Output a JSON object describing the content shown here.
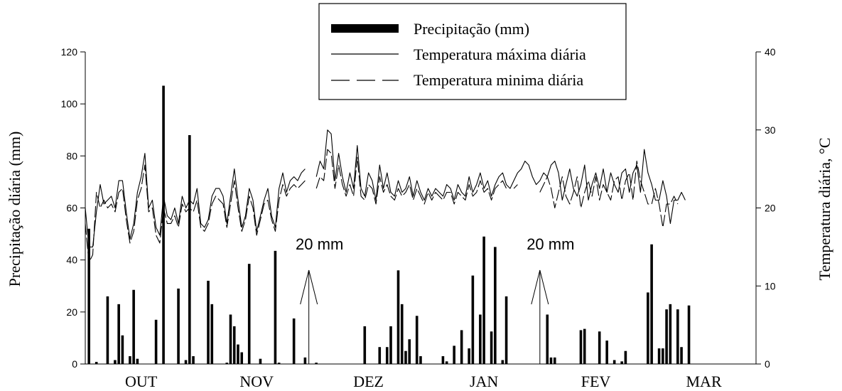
{
  "chart_data": {
    "type": "bar+line",
    "legend": {
      "placement": "top-center",
      "entries": [
        {
          "key": "precip",
          "label": "Precipitação (mm)"
        },
        {
          "key": "tmax",
          "label": "Temperatura máxima diária"
        },
        {
          "key": "tmin",
          "label": "Temperatura minima diária"
        }
      ]
    },
    "y_left": {
      "label": "Precipitação diária (mm)",
      "range": [
        0,
        120
      ],
      "ticks": [
        "0",
        "20",
        "40",
        "60",
        "80",
        "100",
        "120"
      ]
    },
    "y_right": {
      "label": "Temperatura diária, °C",
      "range": [
        0,
        40
      ],
      "ticks": [
        "0",
        "10",
        "20",
        "30",
        "40"
      ]
    },
    "x": {
      "range": [
        0,
        180
      ],
      "months": [
        {
          "label": "OUT",
          "center": 15
        },
        {
          "label": "NOV",
          "center": 46
        },
        {
          "label": "DEZ",
          "center": 76
        },
        {
          "label": "JAN",
          "center": 107
        },
        {
          "label": "FEV",
          "center": 137
        },
        {
          "label": "MAR",
          "center": 166
        }
      ]
    },
    "annotations": [
      {
        "text": "20 mm",
        "day": 60,
        "value": 20
      },
      {
        "text": "20 mm",
        "day": 122,
        "value": 20
      }
    ],
    "precipitation": [
      [
        0,
        52
      ],
      [
        2,
        0.8
      ],
      [
        5,
        26
      ],
      [
        7,
        1.5
      ],
      [
        8,
        23
      ],
      [
        9,
        11
      ],
      [
        11,
        3
      ],
      [
        12,
        28.5
      ],
      [
        13,
        2
      ],
      [
        18,
        17
      ],
      [
        20,
        107
      ],
      [
        24,
        29
      ],
      [
        26,
        1.5
      ],
      [
        27,
        88
      ],
      [
        28,
        3
      ],
      [
        32,
        32
      ],
      [
        33,
        23
      ],
      [
        37,
        0.5
      ],
      [
        38,
        19
      ],
      [
        39,
        14.5
      ],
      [
        40,
        7.5
      ],
      [
        41,
        4.5
      ],
      [
        43,
        38.5
      ],
      [
        46,
        2
      ],
      [
        50,
        43.5
      ],
      [
        51,
        0.5
      ],
      [
        55,
        17.5
      ],
      [
        58,
        2.5
      ],
      [
        61,
        0.5
      ],
      [
        74,
        14.5
      ],
      [
        78,
        6.5
      ],
      [
        80,
        6.5
      ],
      [
        81,
        14.5
      ],
      [
        83,
        36
      ],
      [
        84,
        23
      ],
      [
        85,
        5
      ],
      [
        86,
        9.5
      ],
      [
        88,
        18.5
      ],
      [
        89,
        3
      ],
      [
        95,
        3
      ],
      [
        96,
        1
      ],
      [
        98,
        7
      ],
      [
        100,
        13
      ],
      [
        102,
        6
      ],
      [
        103,
        34
      ],
      [
        105,
        19
      ],
      [
        106,
        49
      ],
      [
        108,
        12.5
      ],
      [
        109,
        45
      ],
      [
        111,
        1.5
      ],
      [
        112,
        26
      ],
      [
        123,
        19
      ],
      [
        124,
        2.5
      ],
      [
        125,
        2.5
      ],
      [
        132,
        13
      ],
      [
        133,
        13.5
      ],
      [
        137,
        12.5
      ],
      [
        139,
        9
      ],
      [
        141,
        1.5
      ],
      [
        143,
        1
      ],
      [
        144,
        5
      ],
      [
        150,
        27.5
      ],
      [
        151,
        46
      ],
      [
        153,
        6
      ],
      [
        154,
        6
      ],
      [
        155,
        21
      ],
      [
        156,
        23
      ],
      [
        158,
        21
      ],
      [
        159,
        6.5
      ],
      [
        161,
        22.5
      ]
    ],
    "tmax": [
      [
        0,
        20
      ],
      [
        1,
        15
      ],
      [
        2,
        15
      ],
      [
        3,
        19.5
      ],
      [
        4,
        23
      ],
      [
        5,
        20.5
      ],
      [
        6,
        21
      ],
      [
        7,
        21.5
      ],
      [
        8,
        20
      ],
      [
        9,
        23.5
      ],
      [
        10,
        23.5
      ],
      [
        11,
        19.5
      ],
      [
        12,
        16
      ],
      [
        13,
        18
      ],
      [
        14,
        22
      ],
      [
        15,
        24
      ],
      [
        16,
        27
      ],
      [
        17,
        20
      ],
      [
        18,
        21
      ],
      [
        19,
        17.5
      ],
      [
        20,
        16.5
      ],
      [
        21,
        21.5
      ],
      [
        22,
        19
      ],
      [
        23,
        18.5
      ],
      [
        24,
        20
      ],
      [
        25,
        18
      ],
      [
        26,
        21.5
      ],
      [
        27,
        20
      ],
      [
        28,
        21
      ],
      [
        29,
        20.5
      ],
      [
        30,
        22.5
      ],
      [
        31,
        18
      ],
      [
        32,
        17.5
      ],
      [
        33,
        18.5
      ],
      [
        34,
        21.5
      ],
      [
        35,
        22.5
      ],
      [
        36,
        22.5
      ],
      [
        37,
        21.5
      ],
      [
        38,
        18
      ],
      [
        39,
        21.5
      ],
      [
        40,
        25
      ],
      [
        41,
        21
      ],
      [
        42,
        17.5
      ],
      [
        43,
        19
      ],
      [
        44,
        22.5
      ],
      [
        45,
        21
      ],
      [
        46,
        17
      ],
      [
        47,
        19
      ],
      [
        48,
        21
      ],
      [
        49,
        22.5
      ],
      [
        50,
        19
      ],
      [
        51,
        17.5
      ],
      [
        52,
        22.5
      ],
      [
        53,
        24.5
      ],
      [
        54,
        22
      ],
      [
        55,
        23.5
      ],
      [
        56,
        24
      ],
      [
        57,
        23.5
      ],
      [
        58,
        24.5
      ],
      [
        59,
        25
      ],
      [
        62,
        24
      ],
      [
        63,
        26
      ],
      [
        64,
        25
      ],
      [
        65,
        30
      ],
      [
        66,
        29.5
      ],
      [
        67,
        23.5
      ],
      [
        68,
        27
      ],
      [
        69,
        24
      ],
      [
        70,
        22
      ],
      [
        71,
        24.5
      ],
      [
        72,
        22.5
      ],
      [
        73,
        28
      ],
      [
        74,
        22.5
      ],
      [
        75,
        21.5
      ],
      [
        76,
        24.5
      ],
      [
        77,
        23.5
      ],
      [
        78,
        21
      ],
      [
        79,
        25.5
      ],
      [
        80,
        22.5
      ],
      [
        81,
        24.5
      ],
      [
        82,
        22
      ],
      [
        83,
        21.5
      ],
      [
        84,
        23.5
      ],
      [
        85,
        22
      ],
      [
        86,
        22.5
      ],
      [
        87,
        24
      ],
      [
        88,
        21.5
      ],
      [
        89,
        23.5
      ],
      [
        90,
        22
      ],
      [
        91,
        21
      ],
      [
        92,
        22.5
      ],
      [
        93,
        21.5
      ],
      [
        94,
        22.5
      ],
      [
        95,
        22
      ],
      [
        96,
        21.5
      ],
      [
        97,
        23
      ],
      [
        98,
        22.5
      ],
      [
        99,
        21
      ],
      [
        100,
        23
      ],
      [
        101,
        22
      ],
      [
        102,
        21.5
      ],
      [
        103,
        24
      ],
      [
        104,
        22
      ],
      [
        105,
        23
      ],
      [
        106,
        24.5
      ],
      [
        107,
        22.5
      ],
      [
        108,
        23.5
      ],
      [
        109,
        21.5
      ],
      [
        110,
        23
      ],
      [
        111,
        24
      ],
      [
        112,
        24.5
      ],
      [
        113,
        23
      ],
      [
        114,
        22.5
      ],
      [
        115,
        23.5
      ],
      [
        116,
        24.5
      ],
      [
        117,
        25
      ],
      [
        118,
        26
      ],
      [
        119,
        25.5
      ],
      [
        120,
        24
      ],
      [
        121,
        23
      ],
      [
        122,
        23.5
      ],
      [
        123,
        24.5
      ],
      [
        124,
        24
      ],
      [
        125,
        25.5
      ],
      [
        126,
        26
      ],
      [
        127,
        24.5
      ],
      [
        128,
        21
      ],
      [
        129,
        23
      ],
      [
        130,
        25
      ],
      [
        131,
        22.5
      ],
      [
        132,
        21.5
      ],
      [
        133,
        23
      ],
      [
        134,
        25.5
      ],
      [
        135,
        21
      ],
      [
        136,
        23
      ],
      [
        137,
        24.5
      ],
      [
        138,
        22.5
      ],
      [
        139,
        25
      ],
      [
        140,
        22
      ],
      [
        141,
        24.5
      ],
      [
        142,
        23
      ],
      [
        143,
        22
      ],
      [
        144,
        24.5
      ],
      [
        145,
        25
      ],
      [
        146,
        22
      ],
      [
        147,
        24.5
      ],
      [
        148,
        25.5
      ],
      [
        149,
        22
      ],
      [
        150,
        27.5
      ],
      [
        151,
        24.5
      ],
      [
        152,
        23
      ],
      [
        153,
        21
      ],
      [
        154,
        21
      ],
      [
        155,
        23.5
      ],
      [
        156,
        21.5
      ],
      [
        157,
        18
      ],
      [
        158,
        21
      ],
      [
        159,
        21
      ],
      [
        160,
        22
      ],
      [
        161,
        21
      ]
    ],
    "tmin": [
      [
        0,
        18
      ],
      [
        1,
        13
      ],
      [
        2,
        14
      ],
      [
        3,
        22
      ],
      [
        4,
        20
      ],
      [
        5,
        21
      ],
      [
        6,
        20
      ],
      [
        7,
        20.5
      ],
      [
        8,
        19.5
      ],
      [
        9,
        22
      ],
      [
        10,
        22.5
      ],
      [
        11,
        18.5
      ],
      [
        12,
        15.5
      ],
      [
        13,
        17
      ],
      [
        14,
        21
      ],
      [
        15,
        22.5
      ],
      [
        16,
        25.5
      ],
      [
        17,
        19.5
      ],
      [
        18,
        20
      ],
      [
        19,
        16.5
      ],
      [
        20,
        15.5
      ],
      [
        21,
        20
      ],
      [
        22,
        18
      ],
      [
        23,
        18
      ],
      [
        24,
        19
      ],
      [
        25,
        17.5
      ],
      [
        26,
        20.5
      ],
      [
        27,
        19.5
      ],
      [
        28,
        20
      ],
      [
        29,
        19.5
      ],
      [
        30,
        21
      ],
      [
        31,
        17.5
      ],
      [
        32,
        17
      ],
      [
        33,
        18
      ],
      [
        34,
        20.5
      ],
      [
        35,
        21.5
      ],
      [
        36,
        21
      ],
      [
        37,
        20.5
      ],
      [
        38,
        17.5
      ],
      [
        39,
        20.5
      ],
      [
        40,
        23.5
      ],
      [
        41,
        20
      ],
      [
        42,
        17
      ],
      [
        43,
        18.5
      ],
      [
        44,
        21.5
      ],
      [
        45,
        20
      ],
      [
        46,
        16.5
      ],
      [
        47,
        18.5
      ],
      [
        48,
        20.5
      ],
      [
        49,
        21
      ],
      [
        50,
        18.5
      ],
      [
        51,
        17
      ],
      [
        52,
        21
      ],
      [
        53,
        23
      ],
      [
        54,
        21.5
      ],
      [
        55,
        22.5
      ],
      [
        56,
        23
      ],
      [
        57,
        22.5
      ],
      [
        58,
        23
      ],
      [
        59,
        23.5
      ],
      [
        62,
        22.5
      ],
      [
        63,
        24
      ],
      [
        64,
        23.5
      ],
      [
        65,
        27.5
      ],
      [
        66,
        27
      ],
      [
        67,
        22.5
      ],
      [
        68,
        25.5
      ],
      [
        69,
        23
      ],
      [
        70,
        21.5
      ],
      [
        71,
        23
      ],
      [
        72,
        21.5
      ],
      [
        73,
        26.5
      ],
      [
        74,
        21.5
      ],
      [
        75,
        21
      ],
      [
        76,
        23
      ],
      [
        77,
        22.5
      ],
      [
        78,
        20.5
      ],
      [
        79,
        24
      ],
      [
        80,
        22
      ],
      [
        81,
        23
      ],
      [
        82,
        21.5
      ],
      [
        83,
        21
      ],
      [
        84,
        22.5
      ],
      [
        85,
        21.5
      ],
      [
        86,
        22
      ],
      [
        87,
        23
      ],
      [
        88,
        21
      ],
      [
        89,
        22.5
      ],
      [
        90,
        21.5
      ],
      [
        91,
        20.5
      ],
      [
        92,
        22
      ],
      [
        93,
        21
      ],
      [
        94,
        22
      ],
      [
        95,
        21.5
      ],
      [
        96,
        21
      ],
      [
        97,
        22
      ],
      [
        98,
        22
      ],
      [
        99,
        20.5
      ],
      [
        100,
        22
      ],
      [
        101,
        21.5
      ],
      [
        102,
        21
      ],
      [
        103,
        23
      ],
      [
        104,
        21.5
      ],
      [
        105,
        22
      ],
      [
        106,
        23.5
      ],
      [
        107,
        22
      ],
      [
        108,
        22.5
      ],
      [
        109,
        21
      ],
      [
        110,
        22.5
      ],
      [
        111,
        23
      ],
      [
        112,
        23.5
      ],
      [
        113,
        22.5
      ],
      [
        115,
        22.5
      ],
      [
        116,
        23
      ],
      [
        118,
        23
      ],
      [
        122,
        22
      ],
      [
        123,
        23
      ],
      [
        124,
        24
      ],
      [
        125,
        22.5
      ],
      [
        126,
        20
      ],
      [
        127,
        22
      ],
      [
        128,
        24
      ],
      [
        129,
        21.5
      ],
      [
        130,
        20.5
      ],
      [
        131,
        22
      ],
      [
        132,
        24
      ],
      [
        133,
        20
      ],
      [
        134,
        22
      ],
      [
        135,
        23.5
      ],
      [
        136,
        21.5
      ],
      [
        137,
        24
      ],
      [
        138,
        21
      ],
      [
        139,
        23
      ],
      [
        140,
        22
      ],
      [
        141,
        21
      ],
      [
        142,
        23.5
      ],
      [
        143,
        24
      ],
      [
        144,
        21
      ],
      [
        145,
        23.5
      ],
      [
        146,
        24.5
      ],
      [
        147,
        21
      ],
      [
        148,
        26
      ],
      [
        149,
        23.5
      ],
      [
        150,
        22
      ],
      [
        151,
        20.5
      ],
      [
        152,
        20.5
      ],
      [
        153,
        22.5
      ],
      [
        154,
        20.5
      ],
      [
        155,
        17.5
      ],
      [
        156,
        20.5
      ],
      [
        157,
        20.5
      ],
      [
        158,
        21.5
      ],
      [
        159,
        20.5
      ]
    ]
  }
}
